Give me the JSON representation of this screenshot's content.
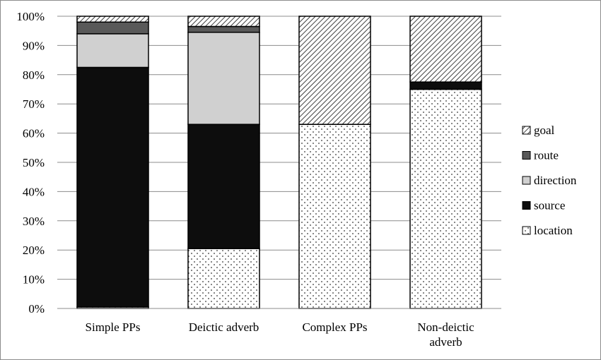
{
  "chart_data": {
    "type": "bar",
    "stacked": true,
    "normalized": true,
    "categories": [
      [
        "Simple PPs"
      ],
      [
        "Deictic adverb"
      ],
      [
        "Complex PPs"
      ],
      [
        "Non-deictic",
        "adverb"
      ]
    ],
    "series": [
      {
        "name": "location",
        "values": [
          0.5,
          20.5,
          63,
          75
        ],
        "color": "#ffffff",
        "pattern": "dots"
      },
      {
        "name": "source",
        "values": [
          82,
          42.5,
          0,
          2.5
        ],
        "color": "#0d0d0d",
        "pattern": "solid"
      },
      {
        "name": "direction",
        "values": [
          11.5,
          31.5,
          0,
          0
        ],
        "color": "#d0d0d0",
        "pattern": "solid"
      },
      {
        "name": "route",
        "values": [
          4,
          2,
          0,
          0
        ],
        "color": "#595959",
        "pattern": "solid"
      },
      {
        "name": "goal",
        "values": [
          2,
          3.5,
          37,
          22.5
        ],
        "color": "#ffffff",
        "pattern": "diagonal-hatch"
      }
    ],
    "yticks": [
      "0%",
      "10%",
      "20%",
      "30%",
      "40%",
      "50%",
      "60%",
      "70%",
      "80%",
      "90%",
      "100%"
    ],
    "ylim": [
      0,
      100
    ],
    "grid": true,
    "legend_position": "right",
    "legend_order": [
      "goal",
      "route",
      "direction",
      "source",
      "location"
    ],
    "title": "",
    "xlabel": "",
    "ylabel": ""
  }
}
